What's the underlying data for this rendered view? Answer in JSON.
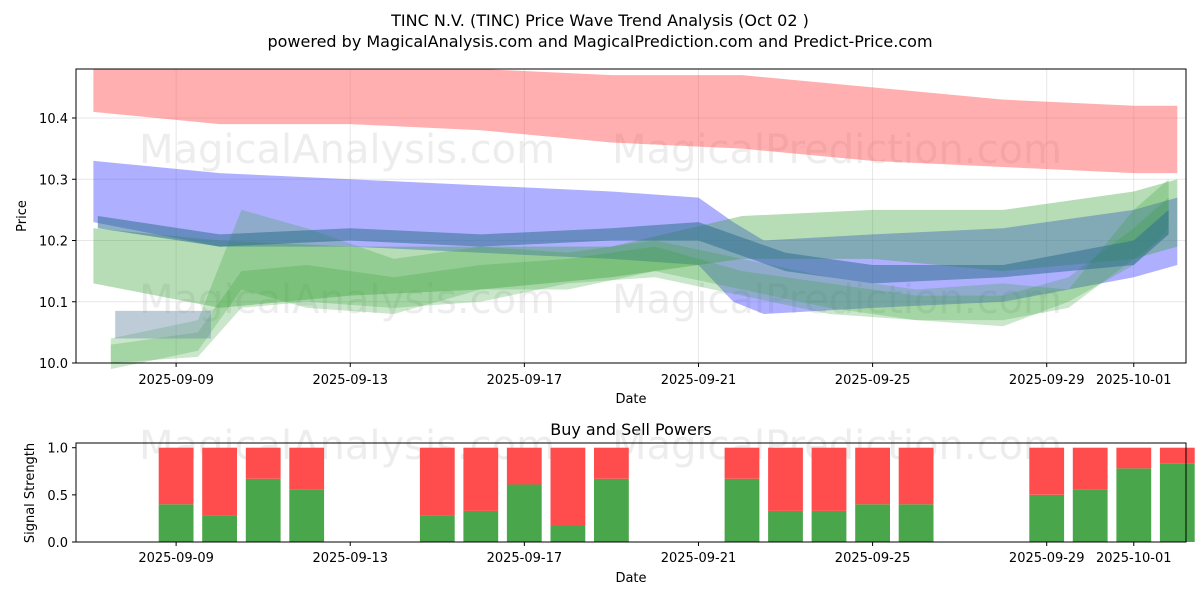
{
  "chart_data": [
    {
      "type": "area",
      "title_line1": "TINC N.V. (TINC) Price Wave Trend Analysis (Oct 02 )",
      "title_line2": "powered by MagicalAnalysis.com and MagicalPrediction.com and Predict-Price.com",
      "xlabel": "Date",
      "ylabel": "Price",
      "ylim": [
        10.0,
        10.48
      ],
      "yticks": [
        10.0,
        10.1,
        10.2,
        10.3,
        10.4
      ],
      "ytick_labels": [
        "10.0",
        "10.1",
        "10.2",
        "10.3",
        "10.4"
      ],
      "x_range_days": [
        -2.3,
        23.2
      ],
      "x_origin_date": "2025-09-09",
      "xticks": [
        0,
        4,
        8,
        12,
        16,
        20,
        22
      ],
      "xtick_labels": [
        "2025-09-09",
        "2025-09-13",
        "2025-09-17",
        "2025-09-21",
        "2025-09-25",
        "2025-09-29",
        "2025-10-01"
      ],
      "watermarks": [
        "MagicalAnalysis.com",
        "MagicalPrediction.com",
        "MagicalAnalysis.com",
        "MagicalPrediction.com"
      ],
      "bands": [
        {
          "name": "red-band",
          "color": "#ff4d4d",
          "opacity": 0.45,
          "x": [
            -1.9,
            1,
            4,
            7,
            10,
            13,
            16,
            19,
            22,
            23
          ],
          "upper": [
            10.48,
            10.48,
            10.48,
            10.48,
            10.47,
            10.47,
            10.45,
            10.43,
            10.42,
            10.42
          ],
          "lower": [
            10.41,
            10.39,
            10.39,
            10.38,
            10.36,
            10.35,
            10.33,
            10.32,
            10.31,
            10.31
          ]
        },
        {
          "name": "blue-band",
          "color": "#4d4dff",
          "opacity": 0.45,
          "x": [
            -1.9,
            1,
            4,
            7,
            10,
            12,
            12.8,
            13.5,
            16,
            19,
            22,
            23
          ],
          "upper": [
            10.33,
            10.31,
            10.3,
            10.29,
            10.28,
            10.27,
            10.23,
            10.2,
            10.21,
            10.22,
            10.25,
            10.27
          ],
          "lower": [
            10.23,
            10.19,
            10.19,
            10.18,
            10.17,
            10.16,
            10.1,
            10.08,
            10.09,
            10.1,
            10.14,
            10.16
          ]
        },
        {
          "name": "green-band-wide",
          "color": "#2e9e2e",
          "opacity": 0.35,
          "x": [
            -1.9,
            1,
            4,
            7,
            10,
            13,
            16,
            19,
            22,
            23
          ],
          "upper": [
            10.22,
            10.2,
            10.19,
            10.19,
            10.19,
            10.24,
            10.25,
            10.25,
            10.28,
            10.3
          ],
          "lower": [
            10.13,
            10.09,
            10.11,
            10.12,
            10.14,
            10.17,
            10.17,
            10.15,
            10.17,
            10.19
          ]
        },
        {
          "name": "green-band-wave-1",
          "color": "#2e9e2e",
          "opacity": 0.25,
          "x": [
            -1.5,
            0.5,
            1.5,
            3,
            5,
            7,
            9,
            11,
            13,
            15,
            17,
            19,
            20.5,
            22,
            22.8
          ],
          "upper": [
            10.04,
            10.07,
            10.25,
            10.22,
            10.17,
            10.19,
            10.18,
            10.2,
            10.17,
            10.14,
            10.12,
            10.13,
            10.12,
            10.25,
            10.3
          ],
          "lower": [
            9.99,
            10.02,
            10.12,
            10.09,
            10.08,
            10.12,
            10.12,
            10.15,
            10.12,
            10.09,
            10.07,
            10.06,
            10.1,
            10.16,
            10.22
          ]
        },
        {
          "name": "green-band-wave-2",
          "color": "#2e9e2e",
          "opacity": 0.25,
          "x": [
            -1.5,
            0.5,
            1.5,
            3,
            5,
            7,
            9,
            11,
            13,
            15,
            17,
            19,
            20.5,
            22,
            22.8
          ],
          "upper": [
            10.03,
            10.05,
            10.15,
            10.16,
            10.14,
            10.16,
            10.17,
            10.19,
            10.15,
            10.13,
            10.11,
            10.11,
            10.14,
            10.22,
            10.27
          ],
          "lower": [
            10.0,
            10.01,
            10.09,
            10.1,
            10.09,
            10.1,
            10.13,
            10.14,
            10.11,
            10.08,
            10.07,
            10.07,
            10.09,
            10.17,
            10.21
          ]
        },
        {
          "name": "grey-band",
          "color": "#6e8ea8",
          "opacity": 0.45,
          "x": [
            -1.4,
            0.8
          ],
          "upper": [
            10.085,
            10.085
          ],
          "lower": [
            10.04,
            10.04
          ]
        },
        {
          "name": "teal-wave",
          "color": "#2f6f8f",
          "opacity": 0.55,
          "x": [
            -1.8,
            1,
            4,
            7,
            10,
            12,
            14,
            16,
            19,
            22,
            22.8
          ],
          "upper": [
            10.24,
            10.21,
            10.22,
            10.21,
            10.22,
            10.23,
            10.18,
            10.16,
            10.16,
            10.2,
            10.25
          ],
          "lower": [
            10.22,
            10.19,
            10.2,
            10.19,
            10.2,
            10.2,
            10.15,
            10.13,
            10.14,
            10.16,
            10.21
          ]
        }
      ]
    },
    {
      "type": "bar",
      "title": "Buy and Sell Powers",
      "xlabel": "Date",
      "ylabel": "Signal Strength",
      "ylim": [
        0,
        1.05
      ],
      "yticks": [
        0.0,
        0.5,
        1.0
      ],
      "ytick_labels": [
        "0.0",
        "0.5",
        "1.0"
      ],
      "xticks": [
        0,
        4,
        8,
        12,
        16,
        20,
        22
      ],
      "xtick_labels": [
        "2025-09-09",
        "2025-09-13",
        "2025-09-17",
        "2025-09-21",
        "2025-09-25",
        "2025-09-29",
        "2025-10-01"
      ],
      "days": [
        0,
        1,
        2,
        3,
        6,
        7,
        8,
        9,
        10,
        13,
        14,
        15,
        16,
        17,
        20,
        21,
        22,
        23
      ],
      "buy": [
        0.4,
        0.28,
        0.67,
        0.56,
        0.28,
        0.33,
        0.61,
        0.17,
        0.67,
        0.67,
        0.33,
        0.33,
        0.4,
        0.4,
        0.5,
        0.56,
        0.78,
        0.83
      ],
      "buy_color": "#4aa64a",
      "sell_color": "#ff4d4d",
      "watermarks": [
        "MagicalAnalysis.com",
        "MagicalPrediction.com"
      ]
    }
  ]
}
